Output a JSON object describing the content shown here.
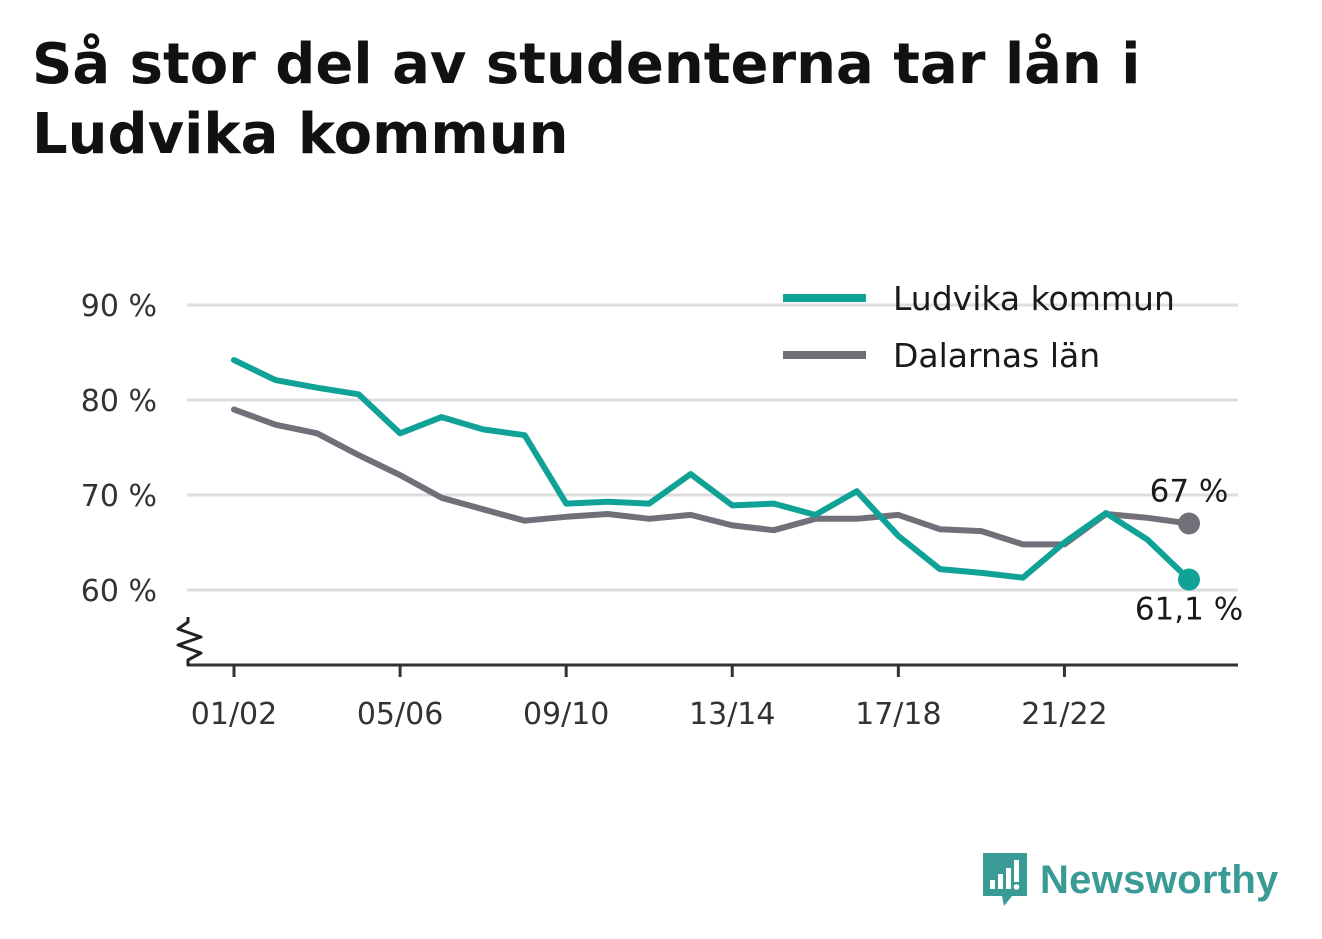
{
  "title": "Så stor del av studenterna tar lån i Ludvika kommun",
  "brand": {
    "name": "Newsworthy",
    "icon": "bar-chart-speech-bubble-icon",
    "color": "#3a9b96"
  },
  "chart_data": {
    "type": "line",
    "title": "Så stor del av studenterna tar lån i Ludvika kommun",
    "xlabel": "",
    "ylabel": "",
    "ylim": [
      52,
      90
    ],
    "y_ticks": [
      90,
      80,
      70,
      60
    ],
    "y_tick_labels": [
      "90 %",
      "80 %",
      "70 %",
      "60 %"
    ],
    "y_axis_break": true,
    "grid": true,
    "legend_position": "top-right",
    "x": [
      "01/02",
      "02/03",
      "03/04",
      "04/05",
      "05/06",
      "06/07",
      "07/08",
      "08/09",
      "09/10",
      "10/11",
      "11/12",
      "12/13",
      "13/14",
      "14/15",
      "15/16",
      "16/17",
      "17/18",
      "18/19",
      "19/20",
      "20/21",
      "21/22",
      "22/23",
      "23/24",
      "24/25"
    ],
    "x_tick_labels": [
      "01/02",
      "05/06",
      "09/10",
      "13/14",
      "17/18",
      "21/22"
    ],
    "series": [
      {
        "name": "Ludvika kommun",
        "color": "#10a296",
        "values": [
          84.2,
          82.1,
          81.3,
          80.6,
          76.5,
          78.2,
          76.9,
          76.3,
          69.1,
          69.3,
          69.1,
          72.2,
          68.9,
          69.1,
          67.9,
          70.4,
          65.7,
          62.2,
          61.8,
          61.3,
          65,
          68.1,
          65.3,
          61.1
        ],
        "end_label": "61,1 %"
      },
      {
        "name": "Dalarnas län",
        "color": "#717078",
        "values": [
          79,
          77.4,
          76.5,
          74.2,
          72.1,
          69.7,
          68.5,
          67.3,
          67.7,
          68,
          67.5,
          67.9,
          66.8,
          66.3,
          67.5,
          67.5,
          67.9,
          66.4,
          66.2,
          64.8,
          64.8,
          68,
          67.6,
          67
        ],
        "end_label": "67 %"
      }
    ]
  }
}
